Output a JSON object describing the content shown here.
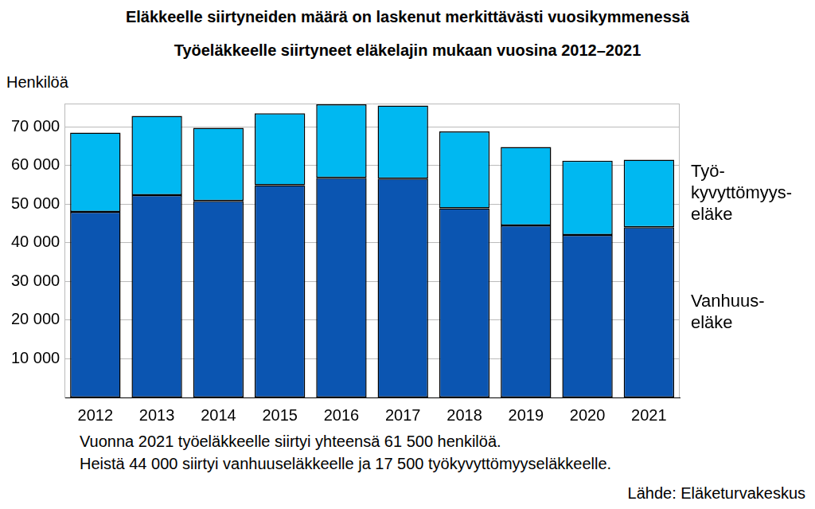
{
  "chart_data": {
    "type": "bar",
    "title": "Eläkkeelle siirtyneiden määrä on laskenut merkittävästi vuosikymmenessä",
    "subtitle": "Työeläkkeelle siirtyneet eläkelajin mukaan vuosina 2012–2021",
    "y_label": "Henkilöä",
    "categories": [
      "2012",
      "2013",
      "2014",
      "2015",
      "2016",
      "2017",
      "2018",
      "2019",
      "2020",
      "2021"
    ],
    "series": [
      {
        "name": "Vanhuus-\neläke",
        "color": "#0b55b1",
        "values": [
          48000,
          52300,
          50800,
          54900,
          56800,
          56600,
          48900,
          44500,
          42000,
          44000
        ]
      },
      {
        "name": "Työ-\nkyvyttömyys-\neläke",
        "color": "#00b8f1",
        "values": [
          20500,
          20500,
          18900,
          18600,
          19000,
          18900,
          19900,
          20300,
          19200,
          17500
        ]
      }
    ],
    "stacked": true,
    "legend": "right",
    "grid": true,
    "ylim": [
      0,
      76000
    ],
    "yticks": [
      {
        "value": 10000,
        "label": "10 000"
      },
      {
        "value": 20000,
        "label": "20 000"
      },
      {
        "value": 30000,
        "label": "30 000"
      },
      {
        "value": 40000,
        "label": "40 000"
      },
      {
        "value": 50000,
        "label": "50 000"
      },
      {
        "value": 60000,
        "label": "60 000"
      },
      {
        "value": 70000,
        "label": "70 000"
      }
    ],
    "notes": [
      "Vuonna 2021 työeläkkeelle siirtyi yhteensä 61 500 henkilöä.",
      "Heistä 44 000 siirtyi vanhuuseläkkeelle ja 17 500 työkyvyttömyyseläkkeelle."
    ],
    "source": "Lähde: Eläketurvakeskus"
  }
}
